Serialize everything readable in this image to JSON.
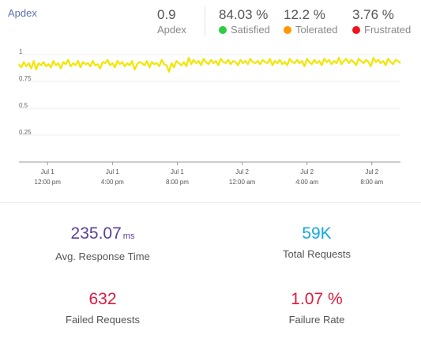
{
  "header": {
    "title": "Apdex",
    "apdex": {
      "value": "0.9",
      "label": "Apdex"
    },
    "satisfied": {
      "value": "84.03 %",
      "label": "Satisfied",
      "color": "#2ecc40"
    },
    "tolerated": {
      "value": "12.2 %",
      "label": "Tolerated",
      "color": "#ff9800"
    },
    "frustrated": {
      "value": "3.76 %",
      "label": "Frustrated",
      "color": "#f0141e"
    }
  },
  "chart_data": {
    "type": "line",
    "series": [
      {
        "color": "#f2e600",
        "values": [
          0.91,
          0.88,
          0.93,
          0.89,
          0.92,
          0.87,
          0.94,
          0.86,
          0.92,
          0.9,
          0.93,
          0.89,
          0.91,
          0.88,
          0.94,
          0.9,
          0.92,
          0.87,
          0.93,
          0.91,
          0.95,
          0.89,
          0.92,
          0.9,
          0.94,
          0.88,
          0.93,
          0.91,
          0.92,
          0.89,
          0.94,
          0.9,
          0.91,
          0.87,
          0.93,
          0.92,
          0.95,
          0.9,
          0.92,
          0.88,
          0.94,
          0.91,
          0.93,
          0.89,
          0.92,
          0.9,
          0.94,
          0.86,
          0.91,
          0.93,
          0.92,
          0.9,
          0.94,
          0.88,
          0.93,
          0.91,
          0.92,
          0.89,
          0.95,
          0.91,
          0.9,
          0.84,
          0.92,
          0.88,
          0.94,
          0.92,
          0.9,
          0.93,
          0.89,
          0.97,
          0.91,
          0.95,
          0.92,
          0.94,
          0.9,
          0.96,
          0.93,
          0.91,
          0.95,
          0.92,
          0.94,
          0.9,
          0.96,
          0.93,
          0.92,
          0.95,
          0.91,
          0.94,
          0.93,
          0.9,
          0.95,
          0.92,
          0.94,
          0.91,
          0.96,
          0.93,
          0.92,
          0.94,
          0.91,
          0.95,
          0.93,
          0.92,
          0.96,
          0.9,
          0.94,
          0.92,
          0.95,
          0.91,
          0.93,
          0.9,
          0.96,
          0.93,
          0.92,
          0.95,
          0.92,
          0.94,
          0.89,
          0.96,
          0.93,
          0.91,
          0.95,
          0.92,
          0.94,
          0.9,
          0.96,
          0.93,
          0.95,
          0.91,
          0.94,
          0.92,
          0.97,
          0.91,
          0.94,
          0.96,
          0.92,
          0.95,
          0.93,
          0.9,
          0.96,
          0.94,
          0.92,
          0.95,
          0.93,
          0.89,
          0.97,
          0.93,
          0.95,
          0.92,
          0.94,
          0.9,
          0.96,
          0.93,
          0.91,
          0.95,
          0.94,
          0.92
        ]
      }
    ],
    "y_ticks": [
      {
        "v": 1,
        "label": "1"
      },
      {
        "v": 0.75,
        "label": "0.75"
      },
      {
        "v": 0.5,
        "label": "0.5"
      },
      {
        "v": 0.25,
        "label": "0.25"
      }
    ],
    "x_ticks": [
      {
        "t": 0.075,
        "line1": "Jul 1",
        "line2": "12:00 pm"
      },
      {
        "t": 0.245,
        "line1": "Jul 1",
        "line2": "4:00 pm"
      },
      {
        "t": 0.415,
        "line1": "Jul 1",
        "line2": "8:00 pm"
      },
      {
        "t": 0.585,
        "line1": "Jul 2",
        "line2": "12:00 am"
      },
      {
        "t": 0.755,
        "line1": "Jul 2",
        "line2": "4:00 am"
      },
      {
        "t": 0.925,
        "line1": "Jul 2",
        "line2": "8:00 am"
      }
    ],
    "ylim": [
      0,
      1
    ],
    "grid": true
  },
  "stats": {
    "response_time": {
      "value": "235.07",
      "unit": "ms",
      "label": "Avg. Response Time",
      "color": "#5b3f97"
    },
    "total_requests": {
      "value": "59K",
      "label": "Total Requests",
      "color": "#15a7e0"
    },
    "failed_requests": {
      "value": "632",
      "label": "Failed Requests",
      "color": "#e0183e"
    },
    "failure_rate": {
      "value": "1.07 %",
      "label": "Failure Rate",
      "color": "#e0183e"
    }
  }
}
